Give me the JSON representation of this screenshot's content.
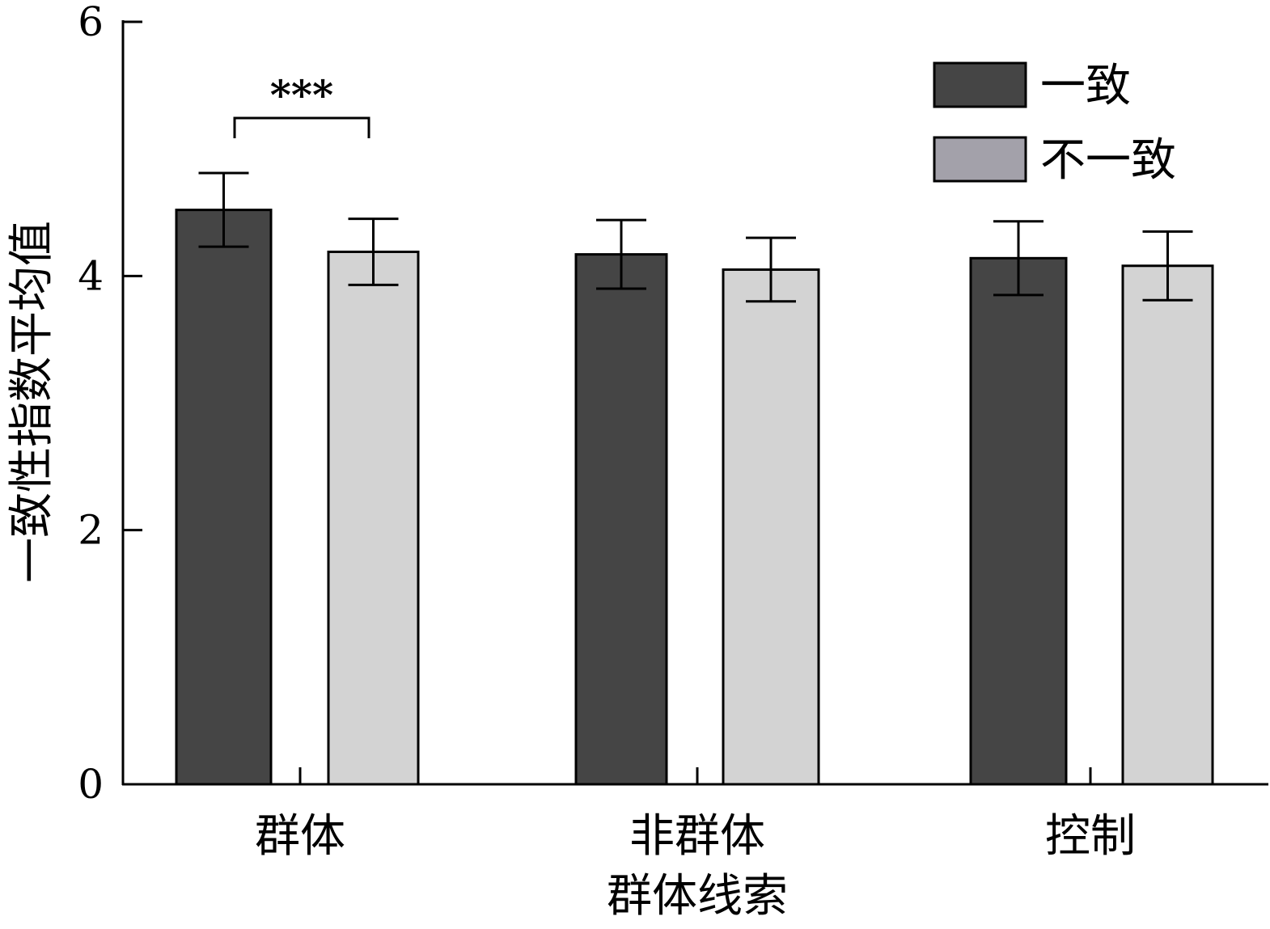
{
  "chart_data": {
    "type": "bar",
    "title": "",
    "xlabel": "群体线索",
    "ylabel": "一致性指数平均值",
    "categories": [
      "群体",
      "非群体",
      "控制"
    ],
    "ylim": [
      0,
      6
    ],
    "yticks": [
      0,
      2,
      4,
      6
    ],
    "grid": false,
    "legend_position": "top-right",
    "series": [
      {
        "name": "一致",
        "color": "#454545",
        "values": [
          4.52,
          4.17,
          4.14
        ],
        "errors": [
          0.29,
          0.27,
          0.29
        ]
      },
      {
        "name": "不一致",
        "color": "#d3d3d3",
        "values": [
          4.19,
          4.05,
          4.08
        ],
        "errors": [
          0.26,
          0.25,
          0.27
        ]
      }
    ],
    "annotations": [
      {
        "text": "***",
        "category": "群体"
      }
    ]
  }
}
